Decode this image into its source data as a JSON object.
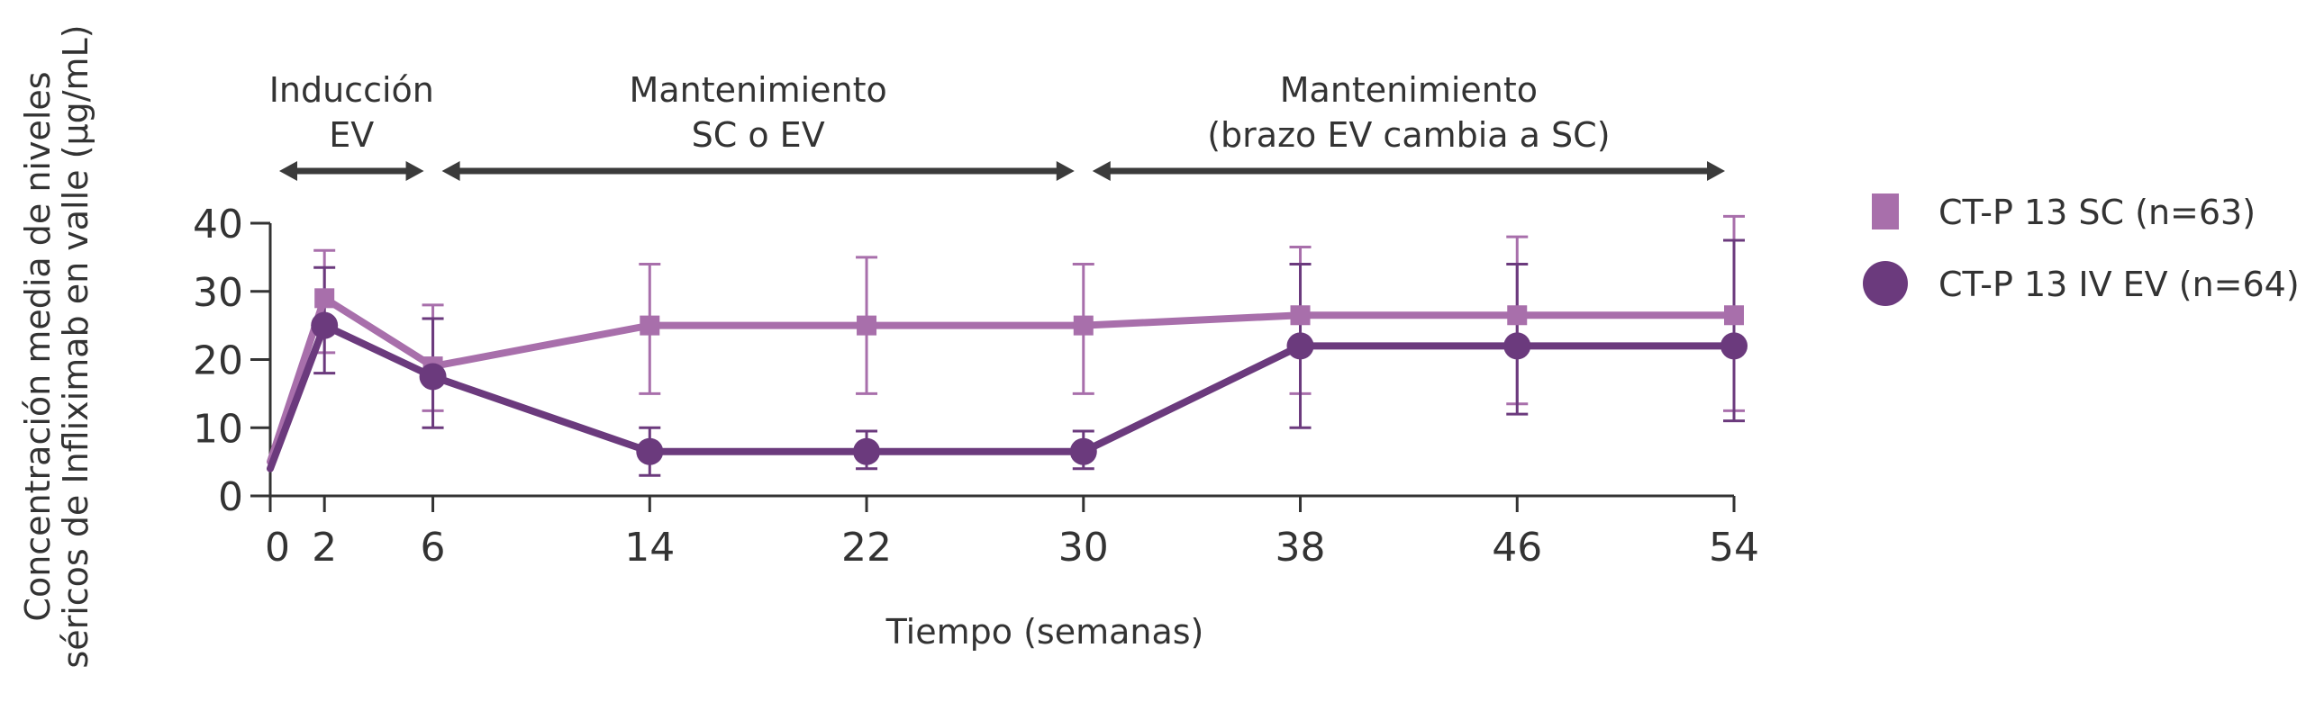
{
  "chart_data": {
    "type": "line",
    "xlabel": "Tiempo (semanas)",
    "ylabel_lines": [
      "Concentración media de niveles",
      "séricos de Infliximab en valle (µg/mL)"
    ],
    "x_ticks": [
      0,
      2,
      6,
      14,
      22,
      30,
      38,
      46,
      54
    ],
    "y_ticks": [
      0,
      10,
      20,
      30,
      40
    ],
    "xlim": [
      0,
      54
    ],
    "ylim": [
      0,
      40
    ],
    "grid": false,
    "legend_position": "right",
    "phases": [
      {
        "lines": [
          "Inducción",
          "EV"
        ],
        "start": 0,
        "end": 6
      },
      {
        "lines": [
          "Mantenimiento",
          "SC o EV"
        ],
        "start": 6,
        "end": 30
      },
      {
        "lines": [
          "Mantenimiento",
          "(brazo EV cambia a SC)"
        ],
        "start": 30,
        "end": 54
      }
    ],
    "series": [
      {
        "name": "CT-P 13 SC (n=63)",
        "color": "#a86fab",
        "marker": "square",
        "x": [
          0,
          2,
          6,
          14,
          22,
          30,
          38,
          46,
          54
        ],
        "y": [
          5,
          29,
          19,
          25,
          25,
          25,
          26.5,
          26.5,
          26.5
        ],
        "err_low": [
          null,
          21,
          12.5,
          15,
          15,
          15,
          15,
          13.5,
          12.5
        ],
        "err_high": [
          null,
          36,
          28,
          34,
          35,
          34,
          36.5,
          38,
          41
        ]
      },
      {
        "name": "CT-P 13 IV EV (n=64)",
        "color": "#6b3a7d",
        "marker": "circle",
        "x": [
          0,
          2,
          6,
          14,
          22,
          30,
          38,
          46,
          54
        ],
        "y": [
          4,
          25,
          17.5,
          6.5,
          6.5,
          6.5,
          22,
          22,
          22
        ],
        "err_low": [
          null,
          18,
          10,
          3,
          4,
          4,
          10,
          12,
          11
        ],
        "err_high": [
          null,
          33.5,
          26,
          10,
          9.5,
          9.5,
          34,
          34,
          37.5
        ]
      }
    ]
  }
}
